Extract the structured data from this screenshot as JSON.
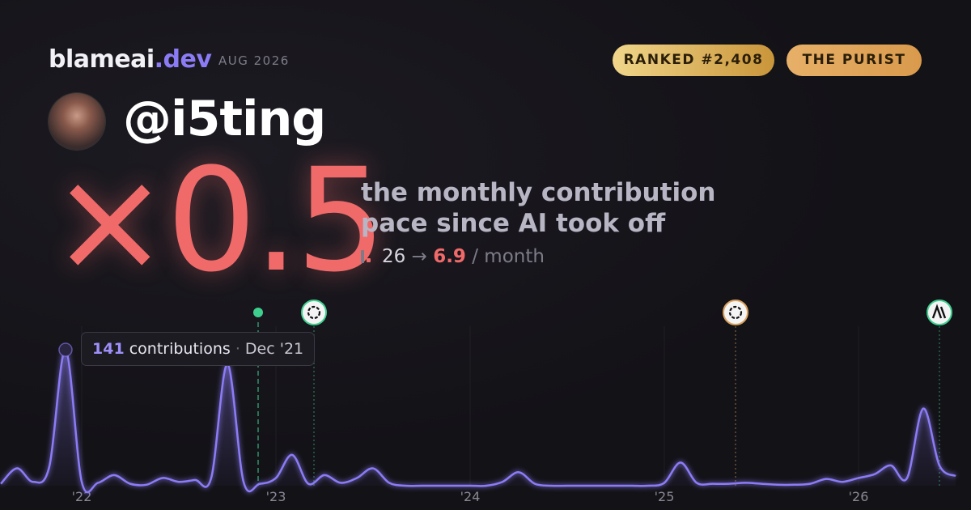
{
  "brand": {
    "name": "blameai",
    "tld": ".dev",
    "date": "AUG 2026"
  },
  "badges": [
    "RANKED #2,408",
    "THE PURIST"
  ],
  "handle": "@i5ting",
  "multiplier": "×0.5",
  "description": [
    "the monthly contribution",
    "pace since AI took off"
  ],
  "pace": {
    "before": "26",
    "arrow": "→",
    "after": "6.9",
    "unit": "/ month"
  },
  "tooltip": {
    "unit": "contributions",
    "separator": "·",
    "month": "Dec '21"
  },
  "chart_data": {
    "type": "line",
    "color": "#8b7cf6",
    "categories": [
      null,
      null,
      null,
      null,
      null,
      "'22",
      null,
      null,
      null,
      null,
      null,
      null,
      null,
      null,
      null,
      null,
      null,
      "'23",
      null,
      null,
      null,
      null,
      null,
      null,
      null,
      null,
      null,
      null,
      null,
      "'24",
      null,
      null,
      null,
      null,
      null,
      null,
      null,
      null,
      null,
      null,
      null,
      "'25",
      null,
      null,
      null,
      null,
      null,
      null,
      null,
      null,
      null,
      null,
      null,
      "'26",
      null,
      null,
      null,
      null,
      null,
      null
    ],
    "values": [
      2,
      18,
      4,
      20,
      141,
      4,
      3,
      11,
      2,
      1,
      8,
      4,
      6,
      8,
      126,
      4,
      2,
      8,
      32,
      2,
      11,
      3,
      8,
      18,
      3,
      0,
      0,
      0,
      0,
      0,
      0,
      4,
      14,
      2,
      0,
      0,
      0,
      0,
      0,
      0,
      0,
      3,
      24,
      3,
      2,
      2,
      3,
      2,
      1,
      1,
      2,
      7,
      4,
      8,
      12,
      21,
      8,
      80,
      21,
      10
    ],
    "ylim": [
      0,
      141
    ]
  }
}
